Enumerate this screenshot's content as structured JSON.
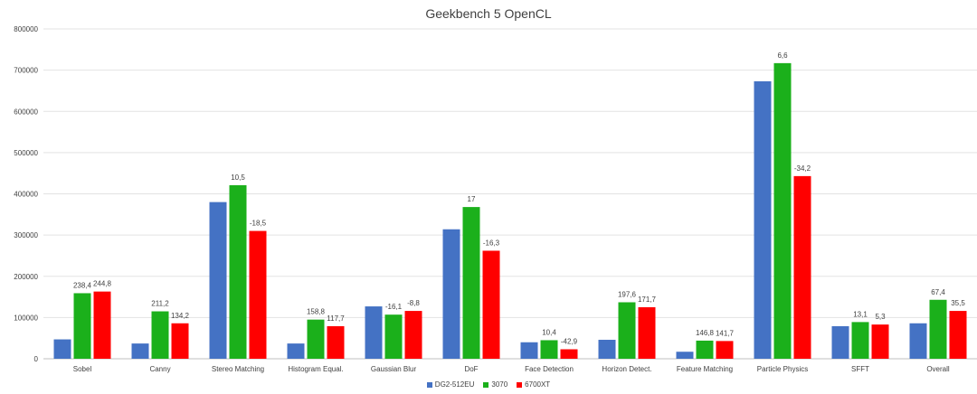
{
  "chart_data": {
    "type": "bar",
    "title": "Geekbench 5 OpenCL",
    "xlabel": "",
    "ylabel": "",
    "ylim": [
      0,
      800000
    ],
    "yticks": [
      "0",
      "100000",
      "200000",
      "300000",
      "400000",
      "500000",
      "600000",
      "700000",
      "800000"
    ],
    "grid": true,
    "legend_position": "bottom",
    "categories": [
      "Sobel",
      "Canny",
      "Stereo Matching",
      "Histogram Equal.",
      "Gaussian Blur",
      "DoF",
      "Face Detection",
      "Horizon Detect.",
      "Feature Matching",
      "Particle Physics",
      "SFFT",
      "Overall"
    ],
    "series": [
      {
        "name": "DG2-512EU",
        "color": "#4472C4",
        "values": [
          47000,
          37000,
          380000,
          37000,
          127000,
          314000,
          40000,
          46000,
          17000,
          673000,
          79000,
          86000
        ],
        "labels": [
          "",
          "",
          "",
          "",
          "",
          "",
          "",
          "",
          "",
          "",
          "",
          ""
        ]
      },
      {
        "name": "3070",
        "color": "#1BB01B",
        "values": [
          159000,
          115000,
          421000,
          95000,
          107000,
          368000,
          45000,
          137000,
          44000,
          717000,
          89000,
          143000
        ],
        "labels": [
          "238,4",
          "211,2",
          "10,5",
          "158,8",
          "-16,1",
          "17",
          "10,4",
          "197,6",
          "146,8",
          "6,6",
          "13,1",
          "67,4"
        ]
      },
      {
        "name": "6700XT",
        "color": "#FF0000",
        "values": [
          163000,
          86000,
          310000,
          79000,
          116000,
          262000,
          23000,
          125000,
          43000,
          443000,
          83000,
          116000
        ],
        "labels": [
          "244,8",
          "134,2",
          "-18,5",
          "117,7",
          "-8,8",
          "-16,3",
          "-42,9",
          "171,7",
          "141,7",
          "-34,2",
          "5,3",
          "35,5"
        ]
      }
    ]
  }
}
